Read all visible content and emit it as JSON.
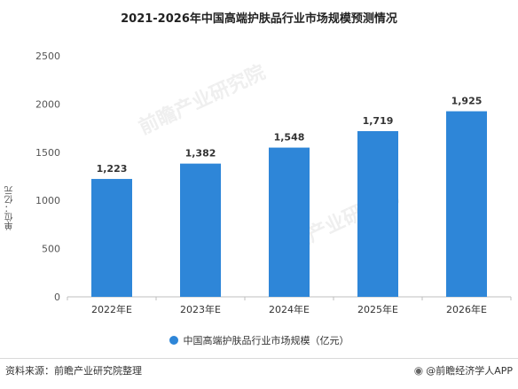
{
  "chart_data": {
    "type": "bar",
    "title": "2021-2026年中国高端护肤品行业市场规模预测情况",
    "ylabel": "单位：亿元",
    "categories": [
      "2022年E",
      "2023年E",
      "2024年E",
      "2025年E",
      "2026年E"
    ],
    "series": [
      {
        "name": "中国高端护肤品行业市场规模（亿元）",
        "values": [
          1223,
          1382,
          1548,
          1719,
          1925
        ]
      }
    ],
    "value_labels": [
      "1,223",
      "1,382",
      "1,548",
      "1,719",
      "1,925"
    ],
    "ylim": [
      0,
      2500
    ],
    "yticks": [
      0,
      500,
      1000,
      1500,
      2000,
      2500
    ],
    "grid": false,
    "legend_position": "bottom",
    "bar_color": "#2e86d8"
  },
  "footer": {
    "source": "资料来源：前瞻产业研究院整理",
    "brand": "@前瞻经济学人APP",
    "brand_icon": "weibo-icon"
  },
  "watermark": {
    "text": "前瞻产业研究院"
  }
}
